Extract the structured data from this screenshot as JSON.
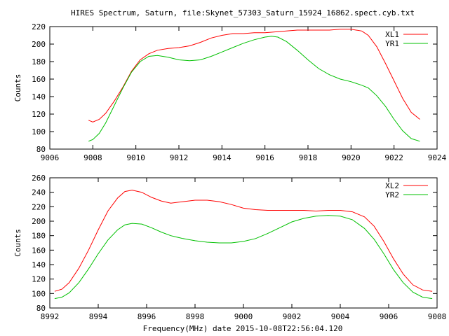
{
  "chart_data": {
    "title": "HIRES Spectrum, Saturn, file:Skynet_57303_Saturn_15924_16862.spect.cyb.txt",
    "xlabel": "Frequency(MHz) date 2015-10-08T22:56:04.120",
    "panels": [
      {
        "type": "line",
        "ylabel": "Counts",
        "xlim": [
          9006,
          9024
        ],
        "ylim": [
          80,
          220
        ],
        "xticks": [
          9006,
          9008,
          9010,
          9012,
          9014,
          9016,
          9018,
          9020,
          9022,
          9024
        ],
        "yticks": [
          80,
          100,
          120,
          140,
          160,
          180,
          200,
          220
        ],
        "legend_position": "top-right",
        "series": [
          {
            "name": "XL1",
            "color": "#ff0000",
            "x": [
              9007.8,
              9008.0,
              9008.3,
              9008.6,
              9009.0,
              9009.4,
              9009.8,
              9010.2,
              9010.6,
              9011.0,
              9011.5,
              9012.0,
              9012.5,
              9013.0,
              9013.5,
              9014.0,
              9014.5,
              9015.0,
              9015.5,
              9016.0,
              9016.5,
              9017.0,
              9017.5,
              9018.0,
              9018.5,
              9019.0,
              9019.5,
              9020.0,
              9020.5,
              9020.8,
              9021.2,
              9021.6,
              9022.0,
              9022.4,
              9022.8,
              9023.2
            ],
            "y": [
              113,
              111,
              114,
              121,
              135,
              151,
              169,
              182,
              189,
              193,
              195,
              196,
              198,
              202,
              207,
              210,
              212,
              212,
              213,
              213,
              214,
              215,
              216,
              216,
              216,
              216,
              217,
              217,
              215,
              210,
              197,
              178,
              158,
              138,
              122,
              114
            ]
          },
          {
            "name": "YR1",
            "color": "#00c000",
            "x": [
              9007.8,
              9008.0,
              9008.3,
              9008.6,
              9009.0,
              9009.4,
              9009.8,
              9010.2,
              9010.6,
              9011.0,
              9011.5,
              9012.0,
              9012.5,
              9013.0,
              9013.5,
              9014.0,
              9014.5,
              9015.0,
              9015.5,
              9016.0,
              9016.3,
              9016.6,
              9017.0,
              9017.5,
              9018.0,
              9018.5,
              9019.0,
              9019.5,
              9020.0,
              9020.5,
              9020.8,
              9021.2,
              9021.6,
              9022.0,
              9022.4,
              9022.8,
              9023.2
            ],
            "y": [
              89,
              91,
              98,
              110,
              130,
              150,
              168,
              180,
              186,
              187,
              185,
              182,
              181,
              182,
              186,
              191,
              196,
              201,
              205,
              208,
              209,
              208,
              203,
              193,
              182,
              172,
              165,
              160,
              157,
              153,
              150,
              141,
              129,
              114,
              101,
              92,
              89
            ]
          }
        ]
      },
      {
        "type": "line",
        "ylabel": "Counts",
        "xlim": [
          8992,
          9008
        ],
        "ylim": [
          80,
          260
        ],
        "xticks": [
          8992,
          8994,
          8996,
          8998,
          9000,
          9002,
          9004,
          9006,
          9008
        ],
        "yticks": [
          80,
          100,
          120,
          140,
          160,
          180,
          200,
          220,
          240,
          260
        ],
        "legend_position": "top-right",
        "series": [
          {
            "name": "XL2",
            "color": "#ff0000",
            "x": [
              8992.2,
              8992.5,
              8992.8,
              8993.2,
              8993.6,
              8994.0,
              8994.4,
              8994.8,
              8995.1,
              8995.4,
              8995.8,
              8996.2,
              8996.6,
              8997.0,
              8997.5,
              8998.0,
              8998.5,
              8999.0,
              8999.5,
              9000.0,
              9000.5,
              9001.0,
              9001.5,
              9002.0,
              9002.5,
              9003.0,
              9003.5,
              9004.0,
              9004.5,
              9005.0,
              9005.4,
              9005.8,
              9006.2,
              9006.6,
              9007.0,
              9007.4,
              9007.8
            ],
            "y": [
              103,
              106,
              115,
              135,
              160,
              188,
              214,
              232,
              241,
              243,
              240,
              233,
              228,
              225,
              227,
              229,
              229,
              227,
              223,
              218,
              216,
              215,
              215,
              215,
              215,
              214,
              215,
              215,
              213,
              206,
              193,
              172,
              148,
              127,
              112,
              105,
              103
            ]
          },
          {
            "name": "YR2",
            "color": "#00c000",
            "x": [
              8992.2,
              8992.5,
              8992.8,
              8993.2,
              8993.6,
              8994.0,
              8994.4,
              8994.8,
              8995.1,
              8995.4,
              8995.8,
              8996.2,
              8996.6,
              8997.0,
              8997.5,
              8998.0,
              8998.5,
              8999.0,
              8999.5,
              9000.0,
              9000.5,
              9001.0,
              9001.5,
              9002.0,
              9002.5,
              9003.0,
              9003.5,
              9004.0,
              9004.5,
              9005.0,
              9005.4,
              9005.8,
              9006.2,
              9006.6,
              9007.0,
              9007.4,
              9007.8
            ],
            "y": [
              93,
              95,
              101,
              115,
              134,
              155,
              174,
              188,
              195,
              197,
              196,
              191,
              185,
              180,
              176,
              173,
              171,
              170,
              170,
              172,
              176,
              183,
              191,
              199,
              204,
              207,
              208,
              207,
              202,
              190,
              175,
              155,
              133,
              115,
              102,
              95,
              93
            ]
          }
        ]
      }
    ]
  }
}
